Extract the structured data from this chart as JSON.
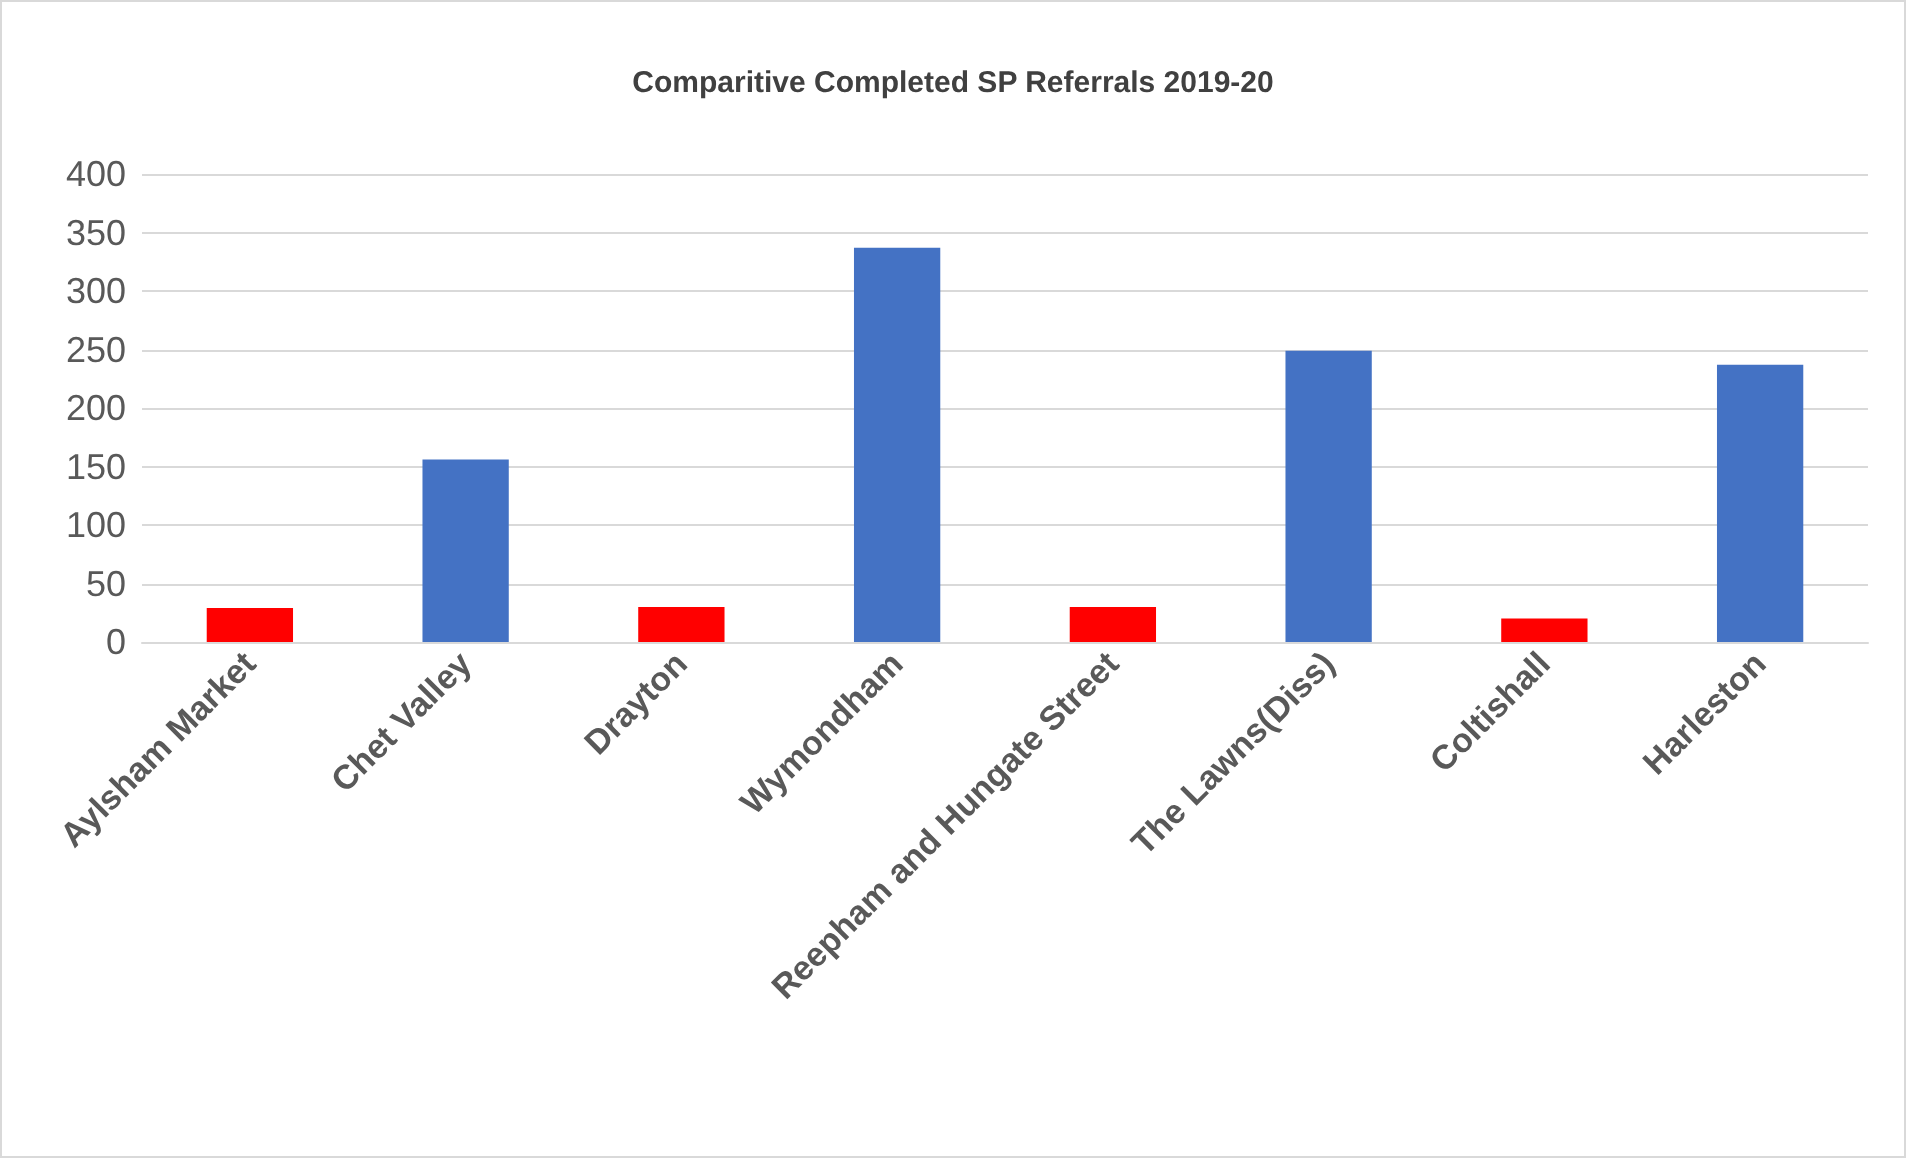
{
  "chart_data": {
    "type": "bar",
    "title": "Comparitive Completed SP Referrals 2019-20",
    "categories": [
      "Aylsham Market",
      "Chet Valley",
      "Drayton",
      "Wymondham",
      "Reepham and Hungate Street",
      "The Lawns(Diss)",
      "Coltishall",
      "Harleston"
    ],
    "values": [
      29,
      156,
      30,
      337,
      30,
      249,
      20,
      237
    ],
    "colors": [
      "#ff0000",
      "#4472c4",
      "#ff0000",
      "#4472c4",
      "#ff0000",
      "#4472c4",
      "#ff0000",
      "#4472c4"
    ],
    "ylim": [
      0,
      400
    ],
    "yticks": [
      0,
      50,
      100,
      150,
      200,
      250,
      300,
      350,
      400
    ],
    "grid": "y"
  }
}
